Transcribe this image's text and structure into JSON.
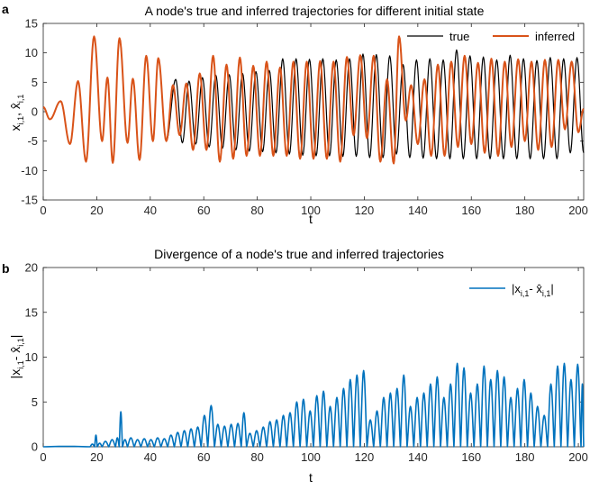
{
  "chart_data": [
    {
      "type": "line",
      "panel_letter": "a",
      "title": "A node's true and inferred trajectories for different initial state",
      "xlabel": "t",
      "ylabel": "x",
      "ylabel_sub": "i,1",
      "ylabel_sep": ", ",
      "ylabel_hat": "x̂",
      "ylabel_hat_sub": "i,1",
      "xlim": [
        0,
        202
      ],
      "ylim": [
        -15,
        15
      ],
      "xticks": [
        0,
        20,
        40,
        60,
        80,
        100,
        120,
        140,
        160,
        180,
        200
      ],
      "yticks": [
        -15,
        -10,
        -5,
        0,
        5,
        10,
        15
      ],
      "grid": false,
      "legend_position": "top-right",
      "series": [
        {
          "name": "true",
          "color": "#000000",
          "peaks": [
            [
              0,
              0.8
            ],
            [
              2.5,
              -1.3
            ],
            [
              6.5,
              1.8
            ],
            [
              10,
              -5.5
            ],
            [
              13,
              5.2
            ],
            [
              16,
              -8.5
            ],
            [
              19,
              12.8
            ],
            [
              22,
              -5
            ],
            [
              24,
              5.8
            ],
            [
              26,
              -8.7
            ],
            [
              28.5,
              12.5
            ],
            [
              31.5,
              -5.3
            ],
            [
              33.5,
              5.6
            ],
            [
              36,
              -8.2
            ],
            [
              38.5,
              9.5
            ],
            [
              41,
              -5
            ],
            [
              43,
              9.1
            ],
            [
              46,
              -5
            ],
            [
              49.5,
              5.5
            ],
            [
              52,
              -5.3
            ],
            [
              54.5,
              5.2
            ],
            [
              57,
              -5.5
            ],
            [
              59.5,
              5.8
            ],
            [
              62,
              -6
            ],
            [
              64.5,
              6.2
            ],
            [
              67,
              -6.2
            ],
            [
              69.5,
              6.3
            ],
            [
              72,
              -6.5
            ],
            [
              74.5,
              6.5
            ],
            [
              77,
              -6.7
            ],
            [
              79.5,
              6.8
            ],
            [
              82,
              -6.8
            ],
            [
              84.5,
              7
            ],
            [
              87,
              -7
            ],
            [
              89.5,
              9
            ],
            [
              92,
              -7.2
            ],
            [
              94.5,
              9
            ],
            [
              97,
              -7.4
            ],
            [
              99.5,
              8.9
            ],
            [
              102,
              -7.5
            ],
            [
              104.5,
              9
            ],
            [
              107,
              -7.5
            ],
            [
              109.5,
              8.8
            ],
            [
              112,
              -7.6
            ],
            [
              114.5,
              9
            ],
            [
              117,
              -7.6
            ],
            [
              119.5,
              9.8
            ],
            [
              122,
              -7.8
            ],
            [
              124.5,
              9.7
            ],
            [
              127,
              -7.8
            ],
            [
              129.5,
              9.5
            ],
            [
              132,
              -7.2
            ],
            [
              134.5,
              8
            ],
            [
              137,
              -7.8
            ],
            [
              139.5,
              8.8
            ],
            [
              142,
              -7.9
            ],
            [
              144.5,
              9
            ],
            [
              147,
              -8
            ],
            [
              149.5,
              8.8
            ],
            [
              152,
              -8
            ],
            [
              154.5,
              10.5
            ],
            [
              157,
              -8
            ],
            [
              159.5,
              9.5
            ],
            [
              162,
              -8
            ],
            [
              164.5,
              9.3
            ],
            [
              167,
              -8
            ],
            [
              169.5,
              8.8
            ],
            [
              172,
              -8
            ],
            [
              174.5,
              9.6
            ],
            [
              177,
              -8
            ],
            [
              179.5,
              9
            ],
            [
              182,
              -8
            ],
            [
              184.5,
              8.7
            ],
            [
              187,
              -8
            ],
            [
              189.5,
              9.2
            ],
            [
              192,
              -8
            ],
            [
              194.5,
              9
            ],
            [
              197,
              -7
            ],
            [
              199.5,
              9.2
            ],
            [
              202,
              -7
            ]
          ]
        },
        {
          "name": "inferred",
          "color": "#D95319",
          "peaks": [
            [
              0,
              0.8
            ],
            [
              2.5,
              -1.3
            ],
            [
              6.5,
              1.8
            ],
            [
              10,
              -5.5
            ],
            [
              13,
              5.2
            ],
            [
              16,
              -8.5
            ],
            [
              19,
              12.8
            ],
            [
              22,
              -5
            ],
            [
              24,
              5.8
            ],
            [
              26,
              -8.7
            ],
            [
              28.5,
              12.5
            ],
            [
              31.5,
              -5.3
            ],
            [
              33.5,
              5.6
            ],
            [
              36,
              -8.2
            ],
            [
              38.5,
              9.5
            ],
            [
              41,
              -5
            ],
            [
              43,
              9.1
            ],
            [
              46,
              -5
            ],
            [
              48.5,
              4.5
            ],
            [
              51,
              -4
            ],
            [
              53.5,
              4.8
            ],
            [
              56,
              -6.5
            ],
            [
              58.5,
              6.5
            ],
            [
              61,
              -6.5
            ],
            [
              63.5,
              9.5
            ],
            [
              66,
              -8.5
            ],
            [
              68.5,
              8
            ],
            [
              71,
              -8
            ],
            [
              73.5,
              9.2
            ],
            [
              76,
              -7.5
            ],
            [
              78.5,
              7.8
            ],
            [
              81,
              -7.5
            ],
            [
              83.5,
              8.5
            ],
            [
              86,
              -7.5
            ],
            [
              88.5,
              7.5
            ],
            [
              91,
              -7.5
            ],
            [
              93.5,
              8.5
            ],
            [
              96,
              -8
            ],
            [
              98.5,
              8.5
            ],
            [
              101,
              -8
            ],
            [
              103.5,
              8.6
            ],
            [
              106,
              -8
            ],
            [
              108.5,
              8.5
            ],
            [
              111,
              -8.5
            ],
            [
              113.5,
              9.3
            ],
            [
              116,
              -4
            ],
            [
              118.5,
              9.6
            ],
            [
              121,
              -4.5
            ],
            [
              123.5,
              9.5
            ],
            [
              126,
              -8.5
            ],
            [
              128.5,
              5.5
            ],
            [
              131,
              -8.8
            ],
            [
              133,
              12.8
            ],
            [
              135.5,
              -1.5
            ],
            [
              137.5,
              4.5
            ],
            [
              140,
              -5.5
            ],
            [
              142.5,
              5.5
            ],
            [
              145,
              -7.5
            ],
            [
              147.5,
              8
            ],
            [
              150,
              -7.5
            ],
            [
              152.5,
              8.5
            ],
            [
              155,
              -6
            ],
            [
              157.5,
              9.5
            ],
            [
              160,
              -5.5
            ],
            [
              162.5,
              8.3
            ],
            [
              165,
              -7
            ],
            [
              167.5,
              9
            ],
            [
              170,
              -7.5
            ],
            [
              172.5,
              8.5
            ],
            [
              175,
              -6
            ],
            [
              177.5,
              8.9
            ],
            [
              180,
              -5
            ],
            [
              182.5,
              8.5
            ],
            [
              185,
              -6.5
            ],
            [
              187.5,
              8.8
            ],
            [
              190,
              -6
            ],
            [
              192.5,
              8.8
            ],
            [
              195,
              -3
            ],
            [
              197.5,
              8.5
            ],
            [
              200,
              -3.5
            ],
            [
              202,
              0.5
            ]
          ]
        }
      ]
    },
    {
      "type": "line",
      "panel_letter": "b",
      "title": "Divergence of a node's true and inferred trajectories",
      "xlabel": "t",
      "ylabel": "|x",
      "ylabel_sub": "i,1",
      "ylabel_sep": "- ",
      "ylabel_hat": "x̂",
      "ylabel_hat_sub": "i,1",
      "ylabel_end": "|",
      "xlim": [
        0,
        202
      ],
      "ylim": [
        0,
        20
      ],
      "xticks": [
        0,
        20,
        40,
        60,
        80,
        100,
        120,
        140,
        160,
        180,
        200
      ],
      "yticks": [
        0,
        5,
        10,
        15,
        20
      ],
      "grid": false,
      "legend_position": "top-right",
      "series": [
        {
          "name": "|x",
          "name_sub": "i,1",
          "name_sep": "- ",
          "name_hat": "x̂",
          "name_hat_sub": "i,1",
          "name_end": "|",
          "color": "#0072BD",
          "humps": [
            [
              0,
              17.5,
              0.05
            ],
            [
              17.5,
              19.2,
              0.3
            ],
            [
              19.2,
              20.2,
              1.3
            ],
            [
              20.2,
              22,
              0.4
            ],
            [
              22,
              24.5,
              0.6
            ],
            [
              24.5,
              27,
              0.8
            ],
            [
              27,
              28.4,
              1
            ],
            [
              28.4,
              29.6,
              3.9
            ],
            [
              29.6,
              31.5,
              0.8
            ],
            [
              31.5,
              34,
              1
            ],
            [
              34,
              36.5,
              0.8
            ],
            [
              36.5,
              39,
              0.9
            ],
            [
              39,
              41.5,
              0.8
            ],
            [
              41.5,
              44,
              1
            ],
            [
              44,
              46.5,
              0.9
            ],
            [
              46.5,
              49,
              1.3
            ],
            [
              49,
              51.5,
              1.6
            ],
            [
              51.5,
              54,
              1.8
            ],
            [
              54,
              56.5,
              2
            ],
            [
              56.5,
              59,
              2.2
            ],
            [
              59,
              61.5,
              3.5
            ],
            [
              61.5,
              64,
              4.6
            ],
            [
              64,
              66.5,
              2.5
            ],
            [
              66.5,
              69,
              2.3
            ],
            [
              69,
              71.5,
              2.5
            ],
            [
              71.5,
              74,
              2.6
            ],
            [
              74,
              76,
              3.8
            ],
            [
              76,
              78.5,
              1.5
            ],
            [
              78.5,
              81,
              1.8
            ],
            [
              81,
              83.5,
              2.2
            ],
            [
              83.5,
              86,
              2.8
            ],
            [
              86,
              88.5,
              3
            ],
            [
              88.5,
              91,
              3.5
            ],
            [
              91,
              93.5,
              3.8
            ],
            [
              93.5,
              96,
              5
            ],
            [
              96,
              98.5,
              5.3
            ],
            [
              98.5,
              101,
              4
            ],
            [
              101,
              103.5,
              5.7
            ],
            [
              103.5,
              106,
              6.2
            ],
            [
              106,
              108.5,
              4.5
            ],
            [
              108.5,
              111,
              5.5
            ],
            [
              111,
              113.5,
              6.5
            ],
            [
              113.5,
              116,
              7.5
            ],
            [
              116,
              118.5,
              8
            ],
            [
              118.5,
              121,
              8.5
            ],
            [
              121,
              123.5,
              3
            ],
            [
              123.5,
              126,
              4
            ],
            [
              126,
              128.5,
              5.5
            ],
            [
              128.5,
              131,
              6
            ],
            [
              131,
              133.5,
              6.5
            ],
            [
              133.5,
              136,
              8
            ],
            [
              136,
              138.5,
              4.5
            ],
            [
              138.5,
              141,
              5.5
            ],
            [
              141,
              143.5,
              6
            ],
            [
              143.5,
              146,
              7
            ],
            [
              146,
              148.5,
              7.8
            ],
            [
              148.5,
              151,
              5.5
            ],
            [
              151,
              153.5,
              7
            ],
            [
              153.5,
              156,
              9.3
            ],
            [
              156,
              158.5,
              8.8
            ],
            [
              158.5,
              161,
              6
            ],
            [
              161,
              163.5,
              7
            ],
            [
              163.5,
              166,
              9
            ],
            [
              166,
              168.5,
              7.5
            ],
            [
              168.5,
              171,
              8.5
            ],
            [
              171,
              173.5,
              7.8
            ],
            [
              173.5,
              176,
              5.5
            ],
            [
              176,
              178.5,
              6.5
            ],
            [
              178.5,
              181,
              7.5
            ],
            [
              181,
              183.5,
              6
            ],
            [
              183.5,
              186,
              4.5
            ],
            [
              186,
              188.5,
              3.5
            ],
            [
              188.5,
              191,
              7
            ],
            [
              191,
              193.5,
              9
            ],
            [
              193.5,
              196,
              9.3
            ],
            [
              196,
              198.5,
              7.5
            ],
            [
              198.5,
              201,
              9.2
            ],
            [
              201,
              202,
              7
            ]
          ]
        }
      ]
    }
  ]
}
